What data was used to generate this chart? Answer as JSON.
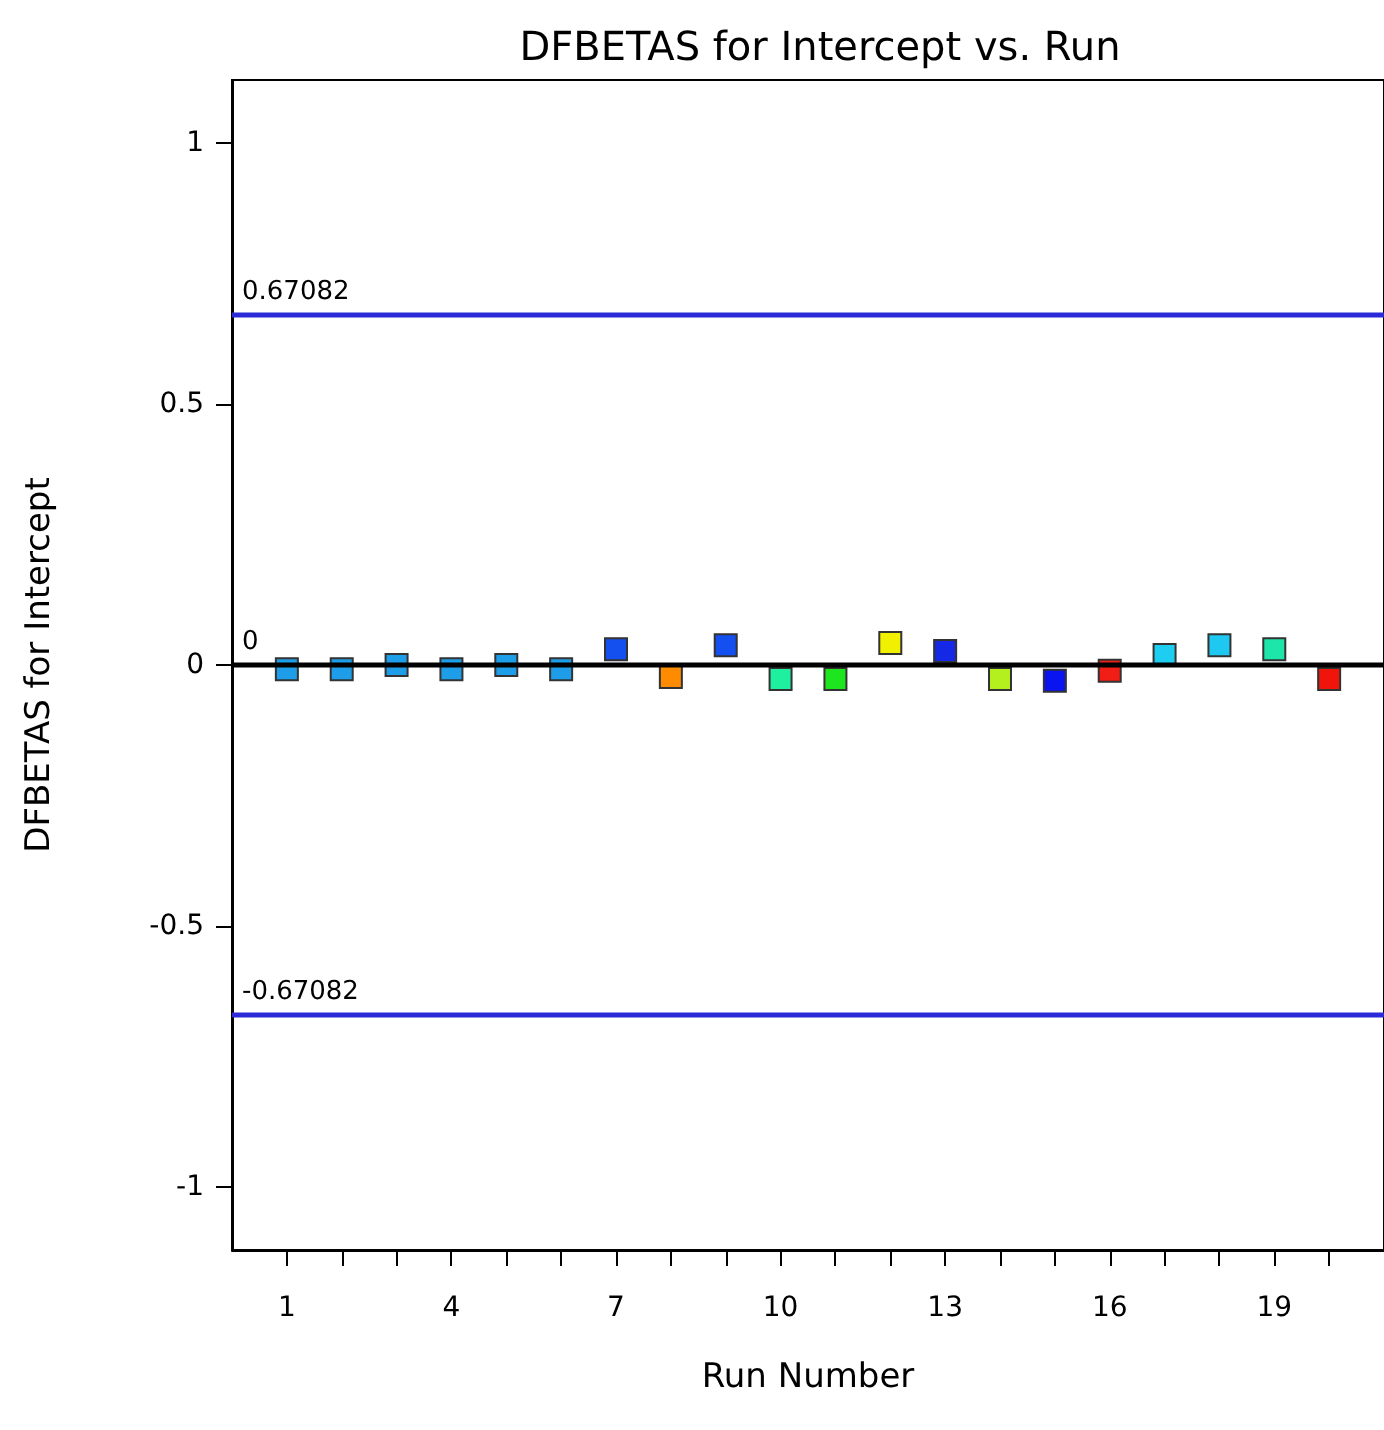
{
  "chart_data": {
    "type": "scatter",
    "title": "DFBETAS for Intercept vs. Run",
    "xlabel": "Run Number",
    "ylabel": "DFBETAS for Intercept",
    "x": [
      1,
      2,
      3,
      4,
      5,
      6,
      7,
      8,
      9,
      10,
      11,
      12,
      13,
      14,
      15,
      16,
      17,
      18,
      19,
      20
    ],
    "values": [
      -0.008,
      -0.008,
      0,
      -0.008,
      0,
      -0.008,
      0.03,
      -0.023,
      0.038,
      -0.027,
      -0.027,
      0.042,
      0.027,
      -0.027,
      -0.03,
      -0.011,
      0.019,
      0.038,
      0.03,
      -0.027
    ],
    "colors": [
      "#1e9ee8",
      "#1e9ee8",
      "#1e9ee8",
      "#1e9ee8",
      "#1e9ee8",
      "#1e9ee8",
      "#1450f0",
      "#ff8c00",
      "#1450f0",
      "#1ef0a0",
      "#1ee61e",
      "#f0f000",
      "#1428e6",
      "#b4f01e",
      "#0a14f0",
      "#f01e14",
      "#1ecef0",
      "#1ec8f0",
      "#1ee6aa",
      "#f0140a"
    ],
    "marker": "square",
    "xlim": [
      0,
      21
    ],
    "xticks": [
      1,
      {
        "value": 2,
        "label": null
      },
      {
        "value": 3,
        "label": null
      },
      4,
      {
        "value": 5,
        "label": null
      },
      {
        "value": 6,
        "label": null
      },
      7,
      {
        "value": 8,
        "label": null
      },
      {
        "value": 9,
        "label": null
      },
      10,
      {
        "value": 11,
        "label": null
      },
      {
        "value": 12,
        "label": null
      },
      13,
      {
        "value": 14,
        "label": null
      },
      {
        "value": 15,
        "label": null
      },
      16,
      {
        "value": 17,
        "label": null
      },
      {
        "value": 18,
        "label": null
      },
      19,
      {
        "value": 20,
        "label": null
      }
    ],
    "ylim": [
      -1.12,
      1.12
    ],
    "yticks": [
      -1,
      -0.5,
      0,
      0.5,
      1
    ],
    "ref_lines": [
      {
        "axis": "y",
        "value": 0.67082,
        "label": "0.67082",
        "color": "#2a2ad8"
      },
      {
        "axis": "y",
        "value": 0,
        "label": "0",
        "color": "#000000"
      },
      {
        "axis": "y",
        "value": -0.67082,
        "label": "-0.67082",
        "color": "#2a2ad8"
      }
    ],
    "grid": false
  }
}
